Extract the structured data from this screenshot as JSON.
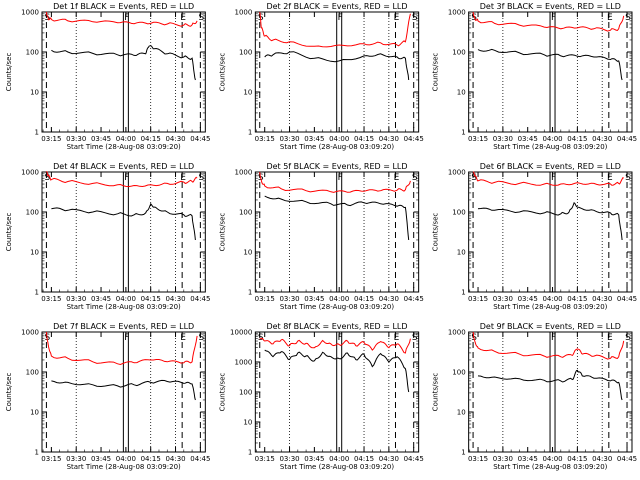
{
  "chart_data": [
    {
      "type": "line",
      "title": "Det 1f BLACK = Events, RED = LLD",
      "xlabel": "Start Time (28-Aug-08 03:09:20)",
      "ylabel": "Counts/sec",
      "yscale": "log",
      "ylim": [
        1,
        1000
      ],
      "ytick_labels": [
        "1",
        "10",
        "100",
        "1000"
      ],
      "xlim": [
        "03:09:20",
        "04:48:00"
      ],
      "xtick_labels": [
        "03:15",
        "03:30",
        "03:45",
        "04:00",
        "04:15",
        "04:30",
        "04:45"
      ],
      "markers": [
        {
          "label": "S",
          "time": "03:12"
        },
        {
          "label": "F",
          "time": "04:00"
        },
        {
          "label": "E",
          "time": "04:34"
        },
        {
          "label": "S",
          "time": "04:45"
        }
      ],
      "series": [
        {
          "name": "LLD",
          "color": "#ff0000",
          "x": [
            "03:12",
            "03:13",
            "03:15",
            "03:25",
            "03:40",
            "03:55",
            "04:05",
            "04:15",
            "04:25",
            "04:35",
            "04:40",
            "04:43"
          ],
          "y": [
            1000,
            700,
            650,
            600,
            570,
            540,
            510,
            520,
            500,
            470,
            480,
            600
          ]
        },
        {
          "name": "Events",
          "color": "#000000",
          "x": [
            "03:15",
            "03:25",
            "03:40",
            "03:55",
            "04:05",
            "04:12",
            "04:14",
            "04:17",
            "04:25",
            "04:35",
            "04:40",
            "04:42"
          ],
          "y": [
            110,
            100,
            92,
            85,
            82,
            90,
            140,
            120,
            90,
            75,
            70,
            20
          ]
        }
      ]
    },
    {
      "type": "line",
      "title": "Det 2f BLACK = Events, RED = LLD",
      "xlabel": "Start Time (28-Aug-08 03:09:20)",
      "ylabel": "Counts/sec",
      "yscale": "log",
      "ylim": [
        1,
        1000
      ],
      "ytick_labels": [
        "1",
        "10",
        "100",
        "1000"
      ],
      "xlim": [
        "03:09:20",
        "04:48:00"
      ],
      "xtick_labels": [
        "03:15",
        "03:30",
        "03:45",
        "04:00",
        "04:15",
        "04:30",
        "04:45"
      ],
      "markers": [
        {
          "label": "S",
          "time": "03:12"
        },
        {
          "label": "F",
          "time": "04:00"
        },
        {
          "label": "E",
          "time": "04:34"
        },
        {
          "label": "S",
          "time": "04:45"
        }
      ],
      "series": [
        {
          "name": "LLD",
          "color": "#ff0000",
          "x": [
            "03:12",
            "03:13",
            "03:15",
            "03:20",
            "03:30",
            "03:45",
            "04:00",
            "04:15",
            "04:25",
            "04:35",
            "04:40",
            "04:43"
          ],
          "y": [
            1000,
            400,
            250,
            200,
            180,
            140,
            150,
            160,
            170,
            150,
            180,
            900
          ]
        },
        {
          "name": "Events",
          "color": "#000000",
          "x": [
            "03:15",
            "03:20",
            "03:30",
            "03:45",
            "04:00",
            "04:15",
            "04:25",
            "04:35",
            "04:40",
            "04:42"
          ],
          "y": [
            75,
            85,
            100,
            70,
            60,
            80,
            90,
            75,
            70,
            20
          ]
        }
      ]
    },
    {
      "type": "line",
      "title": "Det 3f BLACK = Events, RED = LLD",
      "xlabel": "Start Time (28-Aug-08 03:09:20)",
      "ylabel": "Counts/sec",
      "yscale": "log",
      "ylim": [
        1,
        1000
      ],
      "ytick_labels": [
        "1",
        "10",
        "100",
        "1000"
      ],
      "xlim": [
        "03:09:20",
        "04:48:00"
      ],
      "xtick_labels": [
        "03:15",
        "03:30",
        "03:45",
        "04:00",
        "04:15",
        "04:30",
        "04:45"
      ],
      "markers": [
        {
          "label": "S",
          "time": "03:12"
        },
        {
          "label": "F",
          "time": "04:00"
        },
        {
          "label": "E",
          "time": "04:34"
        },
        {
          "label": "S",
          "time": "04:45"
        }
      ],
      "series": [
        {
          "name": "LLD",
          "color": "#ff0000",
          "x": [
            "03:12",
            "03:13",
            "03:15",
            "03:25",
            "03:40",
            "03:55",
            "04:05",
            "04:15",
            "04:25",
            "04:35",
            "04:40",
            "04:43"
          ],
          "y": [
            1000,
            700,
            600,
            520,
            470,
            420,
            380,
            400,
            380,
            350,
            380,
            800
          ]
        },
        {
          "name": "Events",
          "color": "#000000",
          "x": [
            "03:15",
            "03:25",
            "03:40",
            "03:55",
            "04:05",
            "04:15",
            "04:25",
            "04:35",
            "04:40",
            "04:42"
          ],
          "y": [
            115,
            110,
            95,
            85,
            80,
            78,
            75,
            65,
            60,
            20
          ]
        }
      ]
    },
    {
      "type": "line",
      "title": "Det 4f BLACK = Events, RED = LLD",
      "xlabel": "Start Time (28-Aug-08 03:09:20)",
      "ylabel": "Counts/sec",
      "yscale": "log",
      "ylim": [
        1,
        1000
      ],
      "ytick_labels": [
        "1",
        "10",
        "100",
        "1000"
      ],
      "xlim": [
        "03:09:20",
        "04:48:00"
      ],
      "xtick_labels": [
        "03:15",
        "03:30",
        "03:45",
        "04:00",
        "04:15",
        "04:30",
        "04:45"
      ],
      "markers": [
        {
          "label": "S",
          "time": "03:12"
        },
        {
          "label": "F",
          "time": "04:00"
        },
        {
          "label": "E",
          "time": "04:34"
        },
        {
          "label": "S",
          "time": "04:45"
        }
      ],
      "series": [
        {
          "name": "LLD",
          "color": "#ff0000",
          "x": [
            "03:12",
            "03:13",
            "03:15",
            "03:25",
            "03:40",
            "03:55",
            "04:05",
            "04:15",
            "04:25",
            "04:35",
            "04:40",
            "04:43"
          ],
          "y": [
            1000,
            800,
            650,
            580,
            520,
            480,
            460,
            480,
            520,
            560,
            580,
            700
          ]
        },
        {
          "name": "Events",
          "color": "#000000",
          "x": [
            "03:15",
            "03:25",
            "03:40",
            "03:55",
            "04:05",
            "04:12",
            "04:15",
            "04:18",
            "04:25",
            "04:35",
            "04:40",
            "04:42"
          ],
          "y": [
            120,
            110,
            100,
            90,
            85,
            95,
            160,
            130,
            100,
            85,
            80,
            20
          ]
        }
      ]
    },
    {
      "type": "line",
      "title": "Det 5f BLACK = Events, RED = LLD",
      "xlabel": "Start Time (28-Aug-08 03:09:20)",
      "ylabel": "Counts/sec",
      "yscale": "log",
      "ylim": [
        1,
        1000
      ],
      "ytick_labels": [
        "1",
        "10",
        "100",
        "1000"
      ],
      "xlim": [
        "03:09:20",
        "04:48:00"
      ],
      "xtick_labels": [
        "03:15",
        "03:30",
        "03:45",
        "04:00",
        "04:15",
        "04:30",
        "04:45"
      ],
      "markers": [
        {
          "label": "S",
          "time": "03:12"
        },
        {
          "label": "F",
          "time": "04:00"
        },
        {
          "label": "E",
          "time": "04:34"
        },
        {
          "label": "S",
          "time": "04:45"
        }
      ],
      "series": [
        {
          "name": "LLD",
          "color": "#ff0000",
          "x": [
            "03:12",
            "03:13",
            "03:15",
            "03:25",
            "03:40",
            "03:55",
            "04:05",
            "04:15",
            "04:25",
            "04:35",
            "04:40",
            "04:43"
          ],
          "y": [
            1000,
            600,
            450,
            380,
            340,
            320,
            310,
            330,
            340,
            350,
            360,
            600
          ]
        },
        {
          "name": "Events",
          "color": "#000000",
          "x": [
            "03:15",
            "03:25",
            "03:40",
            "03:55",
            "04:05",
            "04:15",
            "04:25",
            "04:35",
            "04:40",
            "04:42"
          ],
          "y": [
            250,
            210,
            180,
            160,
            150,
            170,
            160,
            140,
            130,
            20
          ]
        }
      ]
    },
    {
      "type": "line",
      "title": "Det 6f BLACK = Events, RED = LLD",
      "xlabel": "Start Time (28-Aug-08 03:09:20)",
      "ylabel": "Counts/sec",
      "yscale": "log",
      "ylim": [
        1,
        1000
      ],
      "ytick_labels": [
        "1",
        "10",
        "100",
        "1000"
      ],
      "xlim": [
        "03:09:20",
        "04:48:00"
      ],
      "xtick_labels": [
        "03:15",
        "03:30",
        "03:45",
        "04:00",
        "04:15",
        "04:30",
        "04:45"
      ],
      "markers": [
        {
          "label": "S",
          "time": "03:12"
        },
        {
          "label": "F",
          "time": "04:00"
        },
        {
          "label": "E",
          "time": "04:34"
        },
        {
          "label": "S",
          "time": "04:45"
        }
      ],
      "series": [
        {
          "name": "LLD",
          "color": "#ff0000",
          "x": [
            "03:12",
            "03:13",
            "03:15",
            "03:25",
            "03:40",
            "03:55",
            "04:05",
            "04:15",
            "04:25",
            "04:35",
            "04:40",
            "04:43"
          ],
          "y": [
            1000,
            800,
            600,
            550,
            520,
            500,
            500,
            540,
            520,
            500,
            520,
            700
          ]
        },
        {
          "name": "Events",
          "color": "#000000",
          "x": [
            "03:15",
            "03:25",
            "03:40",
            "03:55",
            "04:05",
            "04:10",
            "04:13",
            "04:16",
            "04:25",
            "04:35",
            "04:40",
            "04:42"
          ],
          "y": [
            120,
            110,
            100,
            95,
            90,
            100,
            170,
            130,
            110,
            95,
            85,
            20
          ]
        }
      ]
    },
    {
      "type": "line",
      "title": "Det 7f BLACK = Events, RED = LLD",
      "xlabel": "Start Time (28-Aug-08 03:09:20)",
      "ylabel": "Counts/sec",
      "yscale": "log",
      "ylim": [
        1,
        1000
      ],
      "ytick_labels": [
        "1",
        "10",
        "100",
        "1000"
      ],
      "xlim": [
        "03:09:20",
        "04:48:00"
      ],
      "xtick_labels": [
        "03:15",
        "03:30",
        "03:45",
        "04:00",
        "04:15",
        "04:30",
        "04:45"
      ],
      "markers": [
        {
          "label": "S",
          "time": "03:12"
        },
        {
          "label": "F",
          "time": "04:00"
        },
        {
          "label": "E",
          "time": "04:34"
        },
        {
          "label": "S",
          "time": "04:45"
        }
      ],
      "series": [
        {
          "name": "LLD",
          "color": "#ff0000",
          "x": [
            "03:12",
            "03:13",
            "03:15",
            "03:25",
            "03:40",
            "03:55",
            "04:05",
            "04:15",
            "04:25",
            "04:35",
            "04:40",
            "04:43"
          ],
          "y": [
            1000,
            500,
            250,
            220,
            180,
            160,
            170,
            200,
            180,
            170,
            180,
            800
          ]
        },
        {
          "name": "Events",
          "color": "#000000",
          "x": [
            "03:15",
            "03:25",
            "03:40",
            "03:55",
            "04:05",
            "04:15",
            "04:25",
            "04:35",
            "04:40",
            "04:42"
          ],
          "y": [
            60,
            55,
            48,
            45,
            48,
            55,
            58,
            52,
            50,
            20
          ]
        }
      ]
    },
    {
      "type": "line",
      "title": "Det 8f BLACK = Events, RED = LLD",
      "xlabel": "Start Time (28-Aug-08 03:09:20)",
      "ylabel": "Counts/sec",
      "yscale": "log",
      "ylim": [
        1,
        10000
      ],
      "ytick_labels": [
        "1",
        "10",
        "100",
        "1000",
        "10000"
      ],
      "xlim": [
        "03:09:20",
        "04:48:00"
      ],
      "xtick_labels": [
        "03:15",
        "03:30",
        "03:45",
        "04:00",
        "04:15",
        "04:30",
        "04:45"
      ],
      "markers": [
        {
          "label": "S",
          "time": "03:12"
        },
        {
          "label": "F",
          "time": "04:00"
        },
        {
          "label": "E",
          "time": "04:34"
        },
        {
          "label": "S",
          "time": "04:45"
        }
      ],
      "series": [
        {
          "name": "LLD",
          "color": "#ff0000",
          "x": [
            "03:12",
            "03:15",
            "03:20",
            "03:25",
            "03:30",
            "03:35",
            "03:40",
            "03:45",
            "03:50",
            "03:55",
            "04:00",
            "04:05",
            "04:10",
            "04:15",
            "04:20",
            "04:25",
            "04:30",
            "04:35",
            "04:40",
            "04:43"
          ],
          "y": [
            6000,
            5000,
            4000,
            5500,
            3500,
            5000,
            4200,
            3000,
            5200,
            4000,
            3800,
            5000,
            3500,
            4500,
            2500,
            4800,
            3000,
            4000,
            2000,
            6000
          ]
        },
        {
          "name": "Events",
          "color": "#000000",
          "x": [
            "03:15",
            "03:20",
            "03:25",
            "03:30",
            "03:35",
            "03:40",
            "03:45",
            "03:50",
            "03:55",
            "04:00",
            "04:05",
            "04:10",
            "04:15",
            "04:20",
            "04:25",
            "04:30",
            "04:35",
            "04:40",
            "04:42"
          ],
          "y": [
            2500,
            1500,
            2200,
            1200,
            2000,
            1600,
            1100,
            2100,
            1500,
            1300,
            2000,
            1200,
            1800,
            700,
            1900,
            1000,
            1500,
            600,
            100
          ]
        }
      ]
    },
    {
      "type": "line",
      "title": "Det 9f BLACK = Events, RED = LLD",
      "xlabel": "Start Time (28-Aug-08 03:09:20)",
      "ylabel": "Counts/sec",
      "yscale": "log",
      "ylim": [
        1,
        1000
      ],
      "ytick_labels": [
        "1",
        "10",
        "100",
        "1000"
      ],
      "xlim": [
        "03:09:20",
        "04:48:00"
      ],
      "xtick_labels": [
        "03:15",
        "03:30",
        "03:45",
        "04:00",
        "04:15",
        "04:30",
        "04:45"
      ],
      "markers": [
        {
          "label": "S",
          "time": "03:12"
        },
        {
          "label": "F",
          "time": "04:00"
        },
        {
          "label": "E",
          "time": "04:34"
        },
        {
          "label": "S",
          "time": "04:45"
        }
      ],
      "series": [
        {
          "name": "LLD",
          "color": "#ff0000",
          "x": [
            "03:12",
            "03:13",
            "03:15",
            "03:25",
            "03:40",
            "03:55",
            "04:05",
            "04:12",
            "04:15",
            "04:18",
            "04:25",
            "04:35",
            "04:40",
            "04:43"
          ],
          "y": [
            1000,
            600,
            400,
            330,
            280,
            250,
            240,
            260,
            380,
            280,
            250,
            220,
            240,
            600
          ]
        },
        {
          "name": "Events",
          "color": "#000000",
          "x": [
            "03:15",
            "03:25",
            "03:40",
            "03:55",
            "04:05",
            "04:12",
            "04:15",
            "04:18",
            "04:25",
            "04:35",
            "04:40",
            "04:42"
          ],
          "y": [
            80,
            75,
            68,
            62,
            60,
            65,
            110,
            80,
            70,
            60,
            55,
            20
          ]
        }
      ]
    }
  ]
}
